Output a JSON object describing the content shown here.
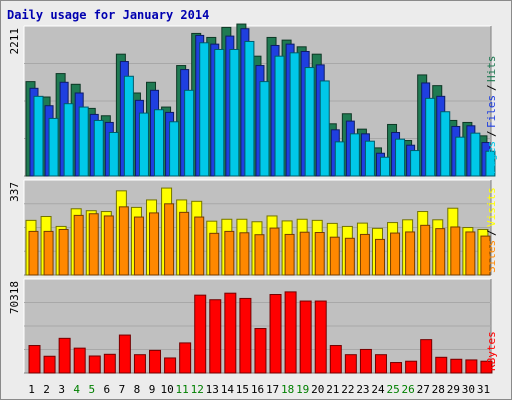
{
  "title": "Daily usage for January 2014",
  "chart_data": [
    {
      "type": "bar",
      "name": "pages-files-hits",
      "ymax_label": "2211",
      "ylim": [
        0,
        2211
      ],
      "legend": [
        {
          "label": "Pages",
          "color": "#00c8e8"
        },
        {
          "label": "Files",
          "color": "#1f3fe0"
        },
        {
          "label": "Hits",
          "color": "#1f7a52"
        }
      ],
      "categories": [
        "1",
        "2",
        "3",
        "4",
        "5",
        "6",
        "7",
        "8",
        "9",
        "10",
        "11",
        "12",
        "13",
        "14",
        "15",
        "16",
        "17",
        "18",
        "19",
        "20",
        "21",
        "22",
        "23",
        "24",
        "25",
        "26",
        "27",
        "28",
        "29",
        "30",
        "31"
      ],
      "weekend_days": [
        "4",
        "5",
        "11",
        "12",
        "18",
        "19",
        "25",
        "26"
      ],
      "series": [
        {
          "name": "Hits",
          "color": "#1f7a52",
          "values": [
            1410,
            1180,
            1530,
            1370,
            1010,
            900,
            1820,
            1240,
            1400,
            1030,
            1650,
            2130,
            2070,
            2220,
            2270,
            1790,
            2070,
            2030,
            1930,
            1820,
            780,
            930,
            700,
            420,
            770,
            530,
            1510,
            1350,
            830,
            800,
            600
          ]
        },
        {
          "name": "Files",
          "color": "#1f3fe0",
          "values": [
            1310,
            1050,
            1400,
            1240,
            920,
            800,
            1710,
            1130,
            1280,
            950,
            1590,
            2100,
            1970,
            2090,
            2200,
            1650,
            1950,
            1970,
            1860,
            1660,
            690,
            820,
            630,
            340,
            650,
            460,
            1390,
            1190,
            740,
            750,
            500
          ]
        },
        {
          "name": "Pages",
          "color": "#00c8e8",
          "values": [
            1190,
            860,
            1080,
            1030,
            830,
            650,
            1490,
            940,
            990,
            810,
            1280,
            1990,
            1890,
            1890,
            2010,
            1410,
            1790,
            1840,
            1620,
            1420,
            510,
            630,
            520,
            280,
            550,
            380,
            1160,
            960,
            580,
            640,
            370
          ]
        }
      ]
    },
    {
      "type": "bar",
      "name": "sites-visits",
      "ymax_label": "337",
      "ylim": [
        0,
        337
      ],
      "legend": [
        {
          "label": "Sites",
          "color": "#ff8800"
        },
        {
          "label": "Visits",
          "color": "#ffff00"
        }
      ],
      "categories": [
        "1",
        "2",
        "3",
        "4",
        "5",
        "6",
        "7",
        "8",
        "9",
        "10",
        "11",
        "12",
        "13",
        "14",
        "15",
        "16",
        "17",
        "18",
        "19",
        "20",
        "21",
        "22",
        "23",
        "24",
        "25",
        "26",
        "27",
        "28",
        "29",
        "30",
        "31"
      ],
      "series": [
        {
          "name": "Visits",
          "color": "#ffff00",
          "values": [
            198,
            212,
            176,
            240,
            233,
            230,
            305,
            245,
            272,
            315,
            272,
            267,
            195,
            202,
            202,
            193,
            214,
            196,
            202,
            198,
            187,
            176,
            188,
            169,
            190,
            200,
            230,
            200,
            242,
            172,
            165
          ]
        },
        {
          "name": "Sites",
          "color": "#ff8800",
          "values": [
            158,
            158,
            165,
            216,
            222,
            214,
            247,
            210,
            225,
            258,
            227,
            210,
            151,
            158,
            153,
            146,
            170,
            147,
            155,
            154,
            137,
            133,
            147,
            129,
            152,
            156,
            180,
            168,
            174,
            156,
            141
          ]
        }
      ]
    },
    {
      "type": "bar",
      "name": "kbytes",
      "ymax_label": "70318",
      "ylim": [
        0,
        70318
      ],
      "legend": [
        {
          "label": "KBytes",
          "color": "#ff0000"
        }
      ],
      "categories": [
        "1",
        "2",
        "3",
        "4",
        "5",
        "6",
        "7",
        "8",
        "9",
        "10",
        "11",
        "12",
        "13",
        "14",
        "15",
        "16",
        "17",
        "18",
        "19",
        "20",
        "21",
        "22",
        "23",
        "24",
        "25",
        "26",
        "27",
        "28",
        "29",
        "30",
        "31"
      ],
      "series": [
        {
          "name": "KBytes",
          "color": "#ff0000",
          "values": [
            21000,
            12800,
            26500,
            19000,
            13000,
            14300,
            29000,
            14000,
            17300,
            11500,
            23000,
            59500,
            56000,
            61000,
            57000,
            34000,
            60000,
            62000,
            55000,
            55000,
            21000,
            14000,
            18000,
            14000,
            8000,
            9000,
            25500,
            12000,
            10500,
            10000,
            9000
          ]
        }
      ]
    }
  ]
}
